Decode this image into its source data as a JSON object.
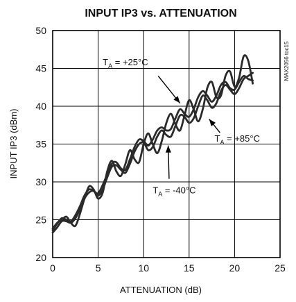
{
  "chart_data": {
    "type": "line",
    "title": "INPUT IP3 vs. ATTENUATION",
    "xlabel": "ATTENUATION (dB)",
    "ylabel": "INPUT IP3 (dBm)",
    "xlim": [
      0,
      25
    ],
    "ylim": [
      20,
      50
    ],
    "xticks": [
      0,
      5,
      10,
      15,
      20,
      25
    ],
    "yticks": [
      20,
      25,
      30,
      35,
      40,
      45,
      50
    ],
    "grid": true,
    "side_label": "MAX2056 toc15",
    "series": [
      {
        "name": "TA = +25°C",
        "x": [
          0,
          0.5,
          1,
          1.5,
          2,
          2.5,
          3,
          3.5,
          4,
          4.5,
          5,
          5.5,
          6,
          6.5,
          7,
          7.5,
          8,
          8.5,
          9,
          9.5,
          10,
          10.5,
          11,
          11.5,
          12,
          12.5,
          13,
          13.5,
          14,
          14.5,
          15,
          15.5,
          16,
          16.5,
          17,
          17.5,
          18,
          18.5,
          19,
          19.5,
          20,
          20.5,
          21,
          21.5,
          22
        ],
        "y": [
          23.6,
          24.5,
          25.2,
          25.0,
          24.8,
          25.6,
          26.8,
          28.2,
          29.0,
          28.8,
          28.5,
          29.6,
          31.0,
          32.4,
          32.6,
          31.8,
          31.6,
          33.0,
          34.6,
          35.6,
          35.4,
          34.8,
          35.6,
          36.8,
          37.2,
          36.8,
          37.0,
          38.4,
          39.6,
          39.0,
          38.6,
          39.6,
          41.2,
          42.0,
          41.4,
          40.6,
          41.4,
          42.8,
          43.2,
          42.4,
          42.2,
          43.2,
          44.0,
          43.6,
          43.4
        ]
      },
      {
        "name": "TA = +85°C",
        "x": [
          0,
          0.5,
          1,
          1.5,
          2,
          2.5,
          3,
          3.5,
          4,
          4.5,
          5,
          5.5,
          6,
          6.5,
          7,
          7.5,
          8,
          8.5,
          9,
          9.5,
          10,
          10.5,
          11,
          11.5,
          12,
          12.5,
          13,
          13.5,
          14,
          14.5,
          15,
          15.5,
          16,
          16.5,
          17,
          17.5,
          18,
          18.5,
          19,
          19.5,
          20,
          20.5,
          21,
          21.5,
          22
        ],
        "y": [
          23.3,
          24.0,
          24.8,
          24.8,
          24.6,
          25.2,
          26.4,
          27.8,
          28.6,
          28.8,
          28.2,
          29.0,
          30.6,
          32.0,
          32.2,
          31.6,
          31.2,
          32.4,
          34.0,
          35.0,
          35.2,
          34.2,
          34.6,
          36.0,
          36.8,
          36.2,
          36.0,
          37.4,
          38.8,
          38.6,
          37.8,
          38.4,
          40.0,
          41.4,
          40.8,
          39.8,
          40.4,
          42.0,
          42.8,
          42.2,
          41.6,
          42.4,
          43.6,
          44.0,
          44.4
        ]
      },
      {
        "name": "TA = -40°C",
        "x": [
          0,
          0.5,
          1,
          1.5,
          2,
          2.5,
          3,
          3.5,
          4,
          4.5,
          5,
          5.5,
          6,
          6.5,
          7,
          7.5,
          8,
          8.5,
          9,
          9.5,
          10,
          10.5,
          11,
          11.5,
          12,
          12.5,
          13,
          13.5,
          14,
          14.5,
          15,
          15.5,
          16,
          16.5,
          17,
          17.5,
          18,
          18.5,
          19,
          19.5,
          20,
          20.5,
          21,
          21.5,
          22
        ],
        "y": [
          23.8,
          24.6,
          25.0,
          25.4,
          24.6,
          24.2,
          25.8,
          27.8,
          29.4,
          29.0,
          27.8,
          28.6,
          31.4,
          32.8,
          31.4,
          30.8,
          32.4,
          34.2,
          33.0,
          32.6,
          35.0,
          36.4,
          35.0,
          33.8,
          35.4,
          37.8,
          39.0,
          37.6,
          36.8,
          38.8,
          40.8,
          39.6,
          38.0,
          39.6,
          42.4,
          43.2,
          41.2,
          41.4,
          44.0,
          44.6,
          42.6,
          43.8,
          46.6,
          46.0,
          43.0
        ]
      }
    ],
    "annotations": [
      {
        "base": "T",
        "sub": "A",
        "rest": " = +25°C",
        "target_series": "TA = +25°C"
      },
      {
        "base": "T",
        "sub": "A",
        "rest": " = +85°C",
        "target_series": "TA = +85°C"
      },
      {
        "base": "T",
        "sub": "A",
        "rest": " = -40°C",
        "target_series": "TA = -40°C"
      }
    ]
  }
}
